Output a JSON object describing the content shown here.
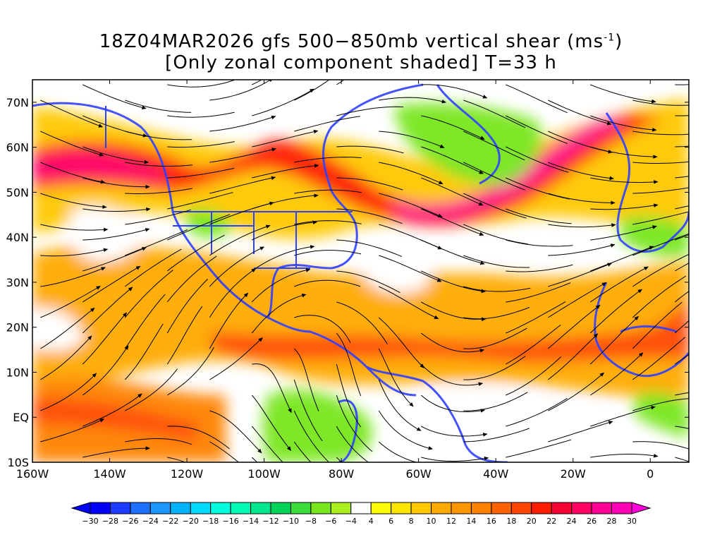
{
  "title": {
    "line1_prefix": "18Z04MAR2026 gfs 500−850mb vertical shear (ms",
    "line1_sup": "-1",
    "line1_suffix": ")",
    "line2": "[Only zonal component shaded] T=33 h"
  },
  "map": {
    "lon_range": [
      -160,
      10
    ],
    "lat_range": [
      -10,
      75
    ],
    "lat_labels": [
      "70N",
      "60N",
      "50N",
      "40N",
      "30N",
      "20N",
      "10N",
      "EQ",
      "10S"
    ],
    "lon_labels": [
      "160W",
      "140W",
      "120W",
      "100W",
      "80W",
      "60W",
      "40W",
      "20W",
      "0"
    ]
  },
  "colorbar": {
    "labels": [
      "-30",
      "-28",
      "-26",
      "-24",
      "-22",
      "-20",
      "-18",
      "-16",
      "-14",
      "-12",
      "-10",
      "-8",
      "-6",
      "-4",
      "4",
      "6",
      "8",
      "10",
      "12",
      "14",
      "16",
      "18",
      "20",
      "22",
      "24",
      "26",
      "28",
      "30"
    ],
    "colors": [
      "#0000ff",
      "#1e3cff",
      "#1e6eff",
      "#1e96ff",
      "#00b4ff",
      "#00dcff",
      "#00ffdc",
      "#00fab4",
      "#00e68c",
      "#00d25a",
      "#3cdc3c",
      "#78e61e",
      "#aaf01e",
      "#ffffff",
      "#ffff00",
      "#ffe600",
      "#ffc800",
      "#ffaa00",
      "#ff9600",
      "#ff8200",
      "#ff6400",
      "#ff4600",
      "#ff1e00",
      "#ff0032",
      "#ff0064",
      "#ff0096",
      "#ff00b4"
    ],
    "under_color": "#0000ff",
    "over_color": "#ff00dc"
  }
}
